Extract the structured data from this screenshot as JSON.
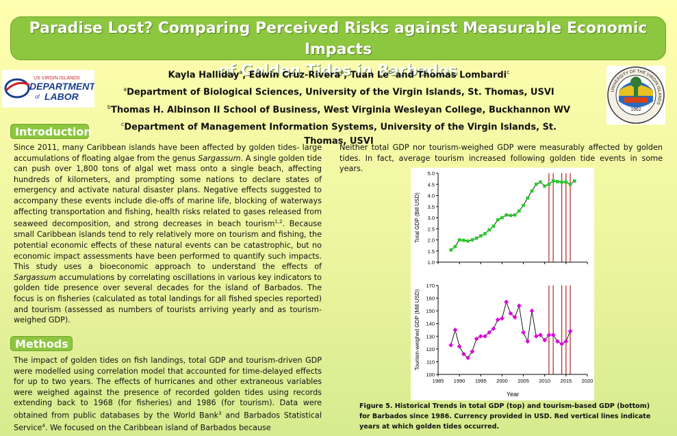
{
  "title": {
    "line1": "Paradise Lost? Comparing Perceived Risks against Measurable Economic Impacts",
    "line2": "of Golden Tides in Barbados"
  },
  "authors": {
    "a1": "Kayla Halliday",
    "a2": "Edwin Cruz-Rivera",
    "a3": "Tuan Le",
    "a4": "Thomas Lombardi",
    "sep1": ",  ",
    "sep2": ",  ",
    "sep3": " and ",
    "sup1": "a",
    "sup2": "a",
    "sup3": "b",
    "sup4": "c",
    "aff1_sup": "a",
    "aff1": "Department of Biological Sciences, University of the Virgin Islands, St. Thomas, USVI",
    "aff2_sup": "b",
    "aff2": "Thomas H. Albinson II School of Business, West Virginia Wesleyan College, Buckhannon WV",
    "aff3_sup": "c",
    "aff3": "Department of Management Information Systems, University of the Virgin Islands, St. Thomas, USVI"
  },
  "logos": {
    "dol_line1": "US VIRGIN ISLANDS",
    "dol_line2": "DEPARTMENT",
    "dol_line3": "of",
    "dol_line4": "LABOR",
    "uvi_ring": "UNIVERSITY OF THE VIRGIN ISLANDS",
    "uvi_year": "1962"
  },
  "sections": {
    "introduction": "Introduction",
    "methods": "Methods"
  },
  "intro": {
    "p1": "Since 2011, many Caribbean islands have been affected by golden tides- large accumulations of floating algae from the genus ",
    "p1_italic": "Sargassum",
    "p2": ". A single golden tide can push over 1,800 tons of algal wet mass onto a single beach, affecting hundreds of kilometers, and prompting some nations to declare states of emergency and activate natural disaster plans. Negative effects suggested to accompany these events include die-offs of marine life, blocking of waterways affecting transportation and fishing, health risks related to gases released from seaweed decomposition, and strong decreases in beach tourism",
    "p2_sup": "1,2",
    "p3": ". Because small Caribbean islands tend to rely relatively more on tourism and fishing, the potential economic effects of these natural events can be catastrophic, but no economic impact assessments have been performed to quantify such impacts. This study uses a bioeconomic approach to understand the effects of ",
    "p3_italic": "Sargassum",
    "p4": " accumulations by correlating oscillations in various key indicators to golden tide presence over several decades for the island of Barbados. The focus is on fisheries (calculated as total landings for all fished species reported) and tourism (assessed as numbers of tourists arriving yearly and as tourism-weighed GDP)."
  },
  "methods": {
    "p1": "The impact of golden tides on fish landings, total GDP and tourism-driven GDP were modelled using correlation model that accounted for time-delayed effects for up to two years. The effects of hurricanes and other extraneous variables were weighed against the presence of recorded golden tides using records extending back to 1968 (for fisheries) and 1986 (for tourism). Data were obtained from public databases by the World Bank",
    "p1_sup1": "3",
    "p2": " and Barbados Statistical Service",
    "p2_sup": "4",
    "p3": ". We focused on the Caribbean island of Barbados because"
  },
  "results": {
    "text": "Neither total GDP nor tourism-weighed GDP were measurably affected by golden tides. In fact, average tourism increased following golden tide events in some years."
  },
  "caption": "Figure 5. Historical Trends in total GDP (top) and tourism-based GDP (bottom) for Barbados since 1986.  Currency provided in USD. Red vertical lines indicate years at which golden tides occurred.",
  "colors": {
    "title_bg": "#8dc63f",
    "gdp_marker": "#22cc22",
    "tourism_marker": "#e000e0",
    "event_line": "#b22222"
  },
  "chart_data": [
    {
      "type": "line",
      "title": "",
      "xlabel": "",
      "ylabel": "Total GDP (Bill USD)",
      "xlim": [
        1985,
        2020
      ],
      "ylim": [
        1.0,
        5.0
      ],
      "y_ticks": [
        "1.0",
        "1.5",
        "2.0",
        "2.5",
        "3.0",
        "3.5",
        "4.0",
        "4.5",
        "5.0"
      ],
      "x": [
        1988,
        1989,
        1990,
        1991,
        1992,
        1993,
        1994,
        1995,
        1996,
        1997,
        1998,
        1999,
        2000,
        2001,
        2002,
        2003,
        2004,
        2005,
        2006,
        2007,
        2008,
        2009,
        2010,
        2011,
        2012,
        2013,
        2014,
        2015,
        2016,
        2017
      ],
      "y": [
        1.55,
        1.7,
        2.0,
        1.98,
        1.95,
        2.0,
        2.08,
        2.18,
        2.28,
        2.45,
        2.62,
        2.9,
        3.0,
        3.12,
        3.1,
        3.12,
        3.3,
        3.55,
        3.88,
        4.2,
        4.5,
        4.6,
        4.42,
        4.5,
        4.65,
        4.62,
        4.6,
        4.6,
        4.5,
        4.65
      ],
      "golden_tide_years": [
        2011,
        2012,
        2014,
        2015,
        2016
      ]
    },
    {
      "type": "line",
      "title": "",
      "xlabel": "Year",
      "ylabel": "Tourism-weighed GDP (Mill USD)",
      "xlim": [
        1985,
        2020
      ],
      "ylim": [
        100,
        170
      ],
      "y_ticks": [
        "100",
        "110",
        "120",
        "130",
        "140",
        "150",
        "160",
        "170"
      ],
      "x_ticks": [
        "1985",
        "1990",
        "1995",
        "2000",
        "2005",
        "2010",
        "2015",
        "2020"
      ],
      "x": [
        1988,
        1989,
        1990,
        1991,
        1992,
        1993,
        1994,
        1995,
        1996,
        1997,
        1998,
        1999,
        2000,
        2001,
        2002,
        2003,
        2004,
        2005,
        2006,
        2007,
        2008,
        2009,
        2010,
        2011,
        2012,
        2013,
        2014,
        2015,
        2016
      ],
      "y": [
        123,
        135,
        122,
        116,
        113,
        118,
        128,
        130,
        130,
        133,
        136,
        143,
        144,
        157,
        148,
        145,
        154,
        133,
        126,
        150,
        130,
        131,
        127,
        131,
        131,
        126,
        124,
        126,
        134
      ],
      "golden_tide_years": [
        2011,
        2012,
        2014,
        2015,
        2016
      ]
    }
  ]
}
